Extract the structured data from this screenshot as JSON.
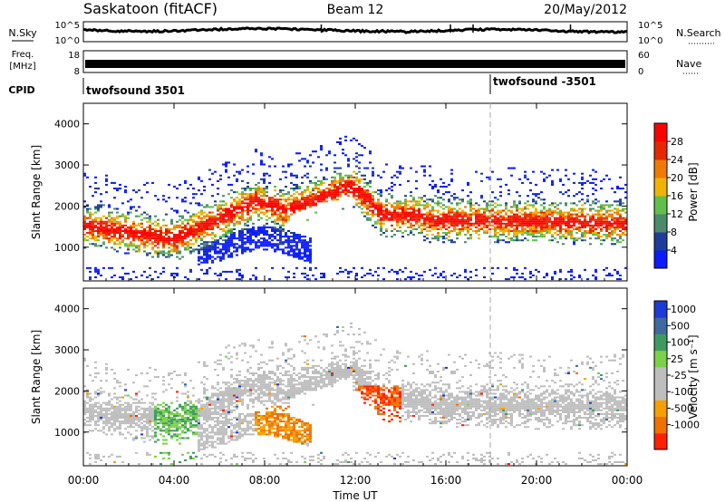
{
  "header": {
    "station": "Saskatoon (fitACF)",
    "beam": "Beam 12",
    "date": "20/May/2012"
  },
  "aux_panels": {
    "nsky_label": "N.Sky",
    "nsky_ticks": [
      "10^5",
      "10^0"
    ],
    "nsearch_label": "N.Search",
    "nsearch_ticks": [
      "10^5",
      "10^0"
    ],
    "freq_label": "Freq.",
    "freq_unit": "[MHz]",
    "freq_ticks": [
      "18",
      "8"
    ],
    "nave_label": "Nave",
    "nave_ticks": [
      "60",
      "0"
    ],
    "cpid_label": "CPID",
    "cpid_segments": [
      {
        "label": "twofsound 3501",
        "start_hour": 0
      },
      {
        "label": "twofsound -3501",
        "start_hour": 18
      }
    ]
  },
  "chart_data": [
    {
      "type": "heatmap",
      "title": "",
      "ylabel": "Slant Range [km]",
      "ylim": [
        180,
        4500
      ],
      "yticks": [
        1000,
        2000,
        3000,
        4000
      ],
      "xlim": [
        0,
        24
      ],
      "colorbar": {
        "label": "Power [dB]",
        "ticks": [
          "4",
          "8",
          "12",
          "16",
          "20",
          "24",
          "28"
        ],
        "colors": [
          "#0a1cff",
          "#1e3c9c",
          "#4b8a6a",
          "#5fbf4a",
          "#f0b400",
          "#f07a00",
          "#e62800",
          "#ff0000"
        ]
      }
    },
    {
      "type": "heatmap",
      "title": "",
      "ylabel": "Slant Range [km]",
      "ylim": [
        180,
        4500
      ],
      "yticks": [
        1000,
        2000,
        3000,
        4000
      ],
      "xlim": [
        0,
        24
      ],
      "colorbar": {
        "label": "Velocity [m s⁻¹]",
        "ticks": [
          "1000",
          "500",
          "100",
          "25",
          "-25",
          "-100",
          "-500",
          "-1000"
        ],
        "colors": [
          "#1c3ad8",
          "#3f6aa0",
          "#3f9a62",
          "#7ad24b",
          "#bebebe",
          "#bebebe",
          "#f5a000",
          "#f07000",
          "#ff2000"
        ]
      }
    }
  ],
  "xaxis": {
    "label": "Time UT",
    "ticks": [
      "00:00",
      "04:00",
      "08:00",
      "12:00",
      "16:00",
      "20:00",
      "00:00"
    ]
  }
}
